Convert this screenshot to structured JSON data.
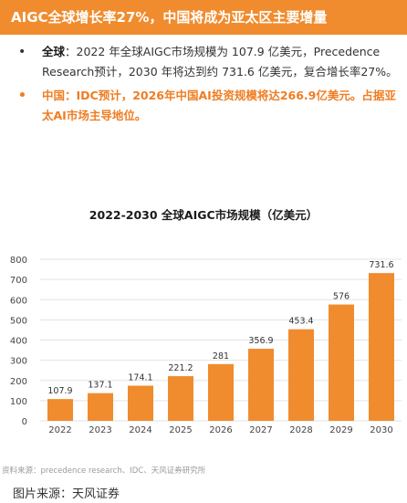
{
  "banner": {
    "title": "AIGC全球增长率27%，中国将成为亚太区主要增量"
  },
  "bullets": {
    "global_head": "全球",
    "global_text": "：2022 年全球AIGC市场规模为 107.9 亿美元，Precedence Research预计，2030 年将达到约 731.6 亿美元，复合增长率27%。",
    "china_head": "中国",
    "china_text": "：IDC预计，2026年中国AI投资规模将达266.9亿美元。占据亚太AI市场主导地位。"
  },
  "chart_data": {
    "type": "bar",
    "title": "2022-2030 全球AIGC市场规模（亿美元）",
    "categories": [
      "2022",
      "2023",
      "2024",
      "2025",
      "2026",
      "2027",
      "2028",
      "2029",
      "2030"
    ],
    "values": [
      107.9,
      137.1,
      174.1,
      221.2,
      281,
      356.9,
      453.4,
      576,
      731.6
    ],
    "labels": [
      "107.9",
      "137.1",
      "174.1",
      "221.2",
      "281",
      "356.9",
      "453.4",
      "576",
      "731.6"
    ],
    "yticks": [
      0,
      100,
      200,
      300,
      400,
      500,
      600,
      700,
      800
    ],
    "ylim": [
      0,
      800
    ],
    "grid": true,
    "bar_color": "#f08c2e"
  },
  "source": "资料来源：precedence research、IDC、天风证券研究所",
  "caption": "图片来源：天风证券"
}
